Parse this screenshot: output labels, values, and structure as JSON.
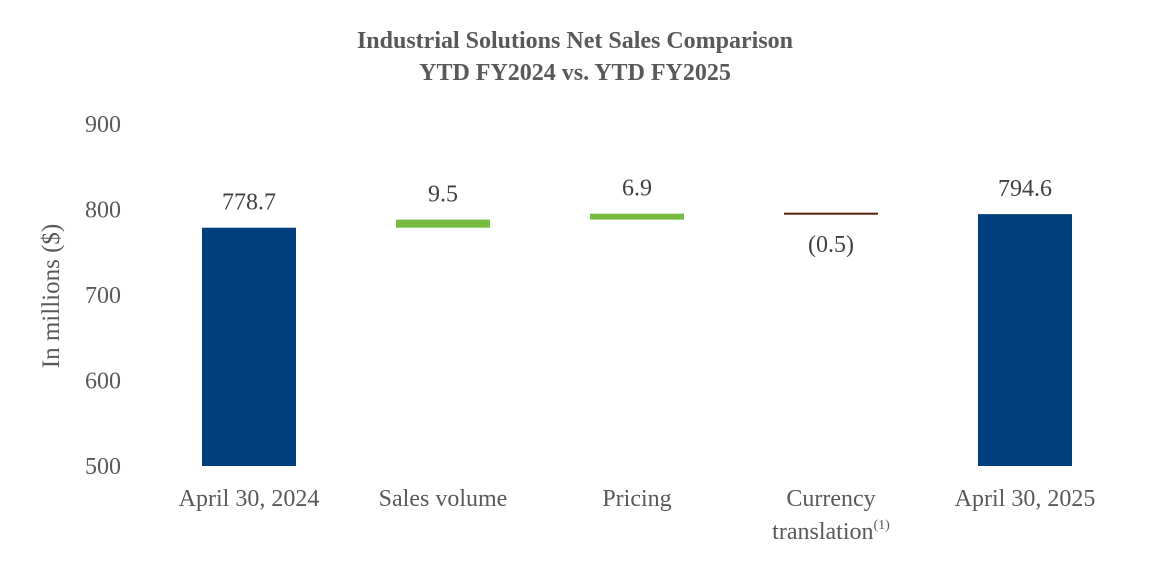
{
  "chart_data": {
    "type": "waterfall",
    "title": [
      "Industrial Solutions Net Sales Comparison",
      "YTD FY2024 vs. YTD FY2025"
    ],
    "ylabel": "In millions ($)",
    "ylim": [
      500,
      900
    ],
    "yticks": [
      "500",
      "600",
      "700",
      "800",
      "900"
    ],
    "grid": false,
    "categories": [
      {
        "label": "April 30, 2024",
        "label_lines": [
          "April 30, 2024"
        ],
        "superscript": ""
      },
      {
        "label": "Sales volume",
        "label_lines": [
          "Sales volume"
        ],
        "superscript": ""
      },
      {
        "label": "Pricing",
        "label_lines": [
          "Pricing"
        ],
        "superscript": ""
      },
      {
        "label": "Currency translation(1)",
        "label_lines": [
          "Currency",
          "translation"
        ],
        "superscript": "(1)"
      },
      {
        "label": "April 30, 2025",
        "label_lines": [
          "April 30, 2025"
        ],
        "superscript": ""
      }
    ],
    "bars": [
      {
        "kind": "total",
        "value": 778.7,
        "label": "778.7",
        "color": "#003f7d"
      },
      {
        "kind": "increase",
        "value": 9.5,
        "label": "9.5",
        "color": "#76bc43"
      },
      {
        "kind": "increase",
        "value": 6.9,
        "label": "6.9",
        "color": "#76bc43"
      },
      {
        "kind": "decrease",
        "value": -0.5,
        "label": "(0.5)",
        "color": "#5a1e0a"
      },
      {
        "kind": "total",
        "value": 794.6,
        "label": "794.6",
        "color": "#003f7d"
      }
    ]
  }
}
